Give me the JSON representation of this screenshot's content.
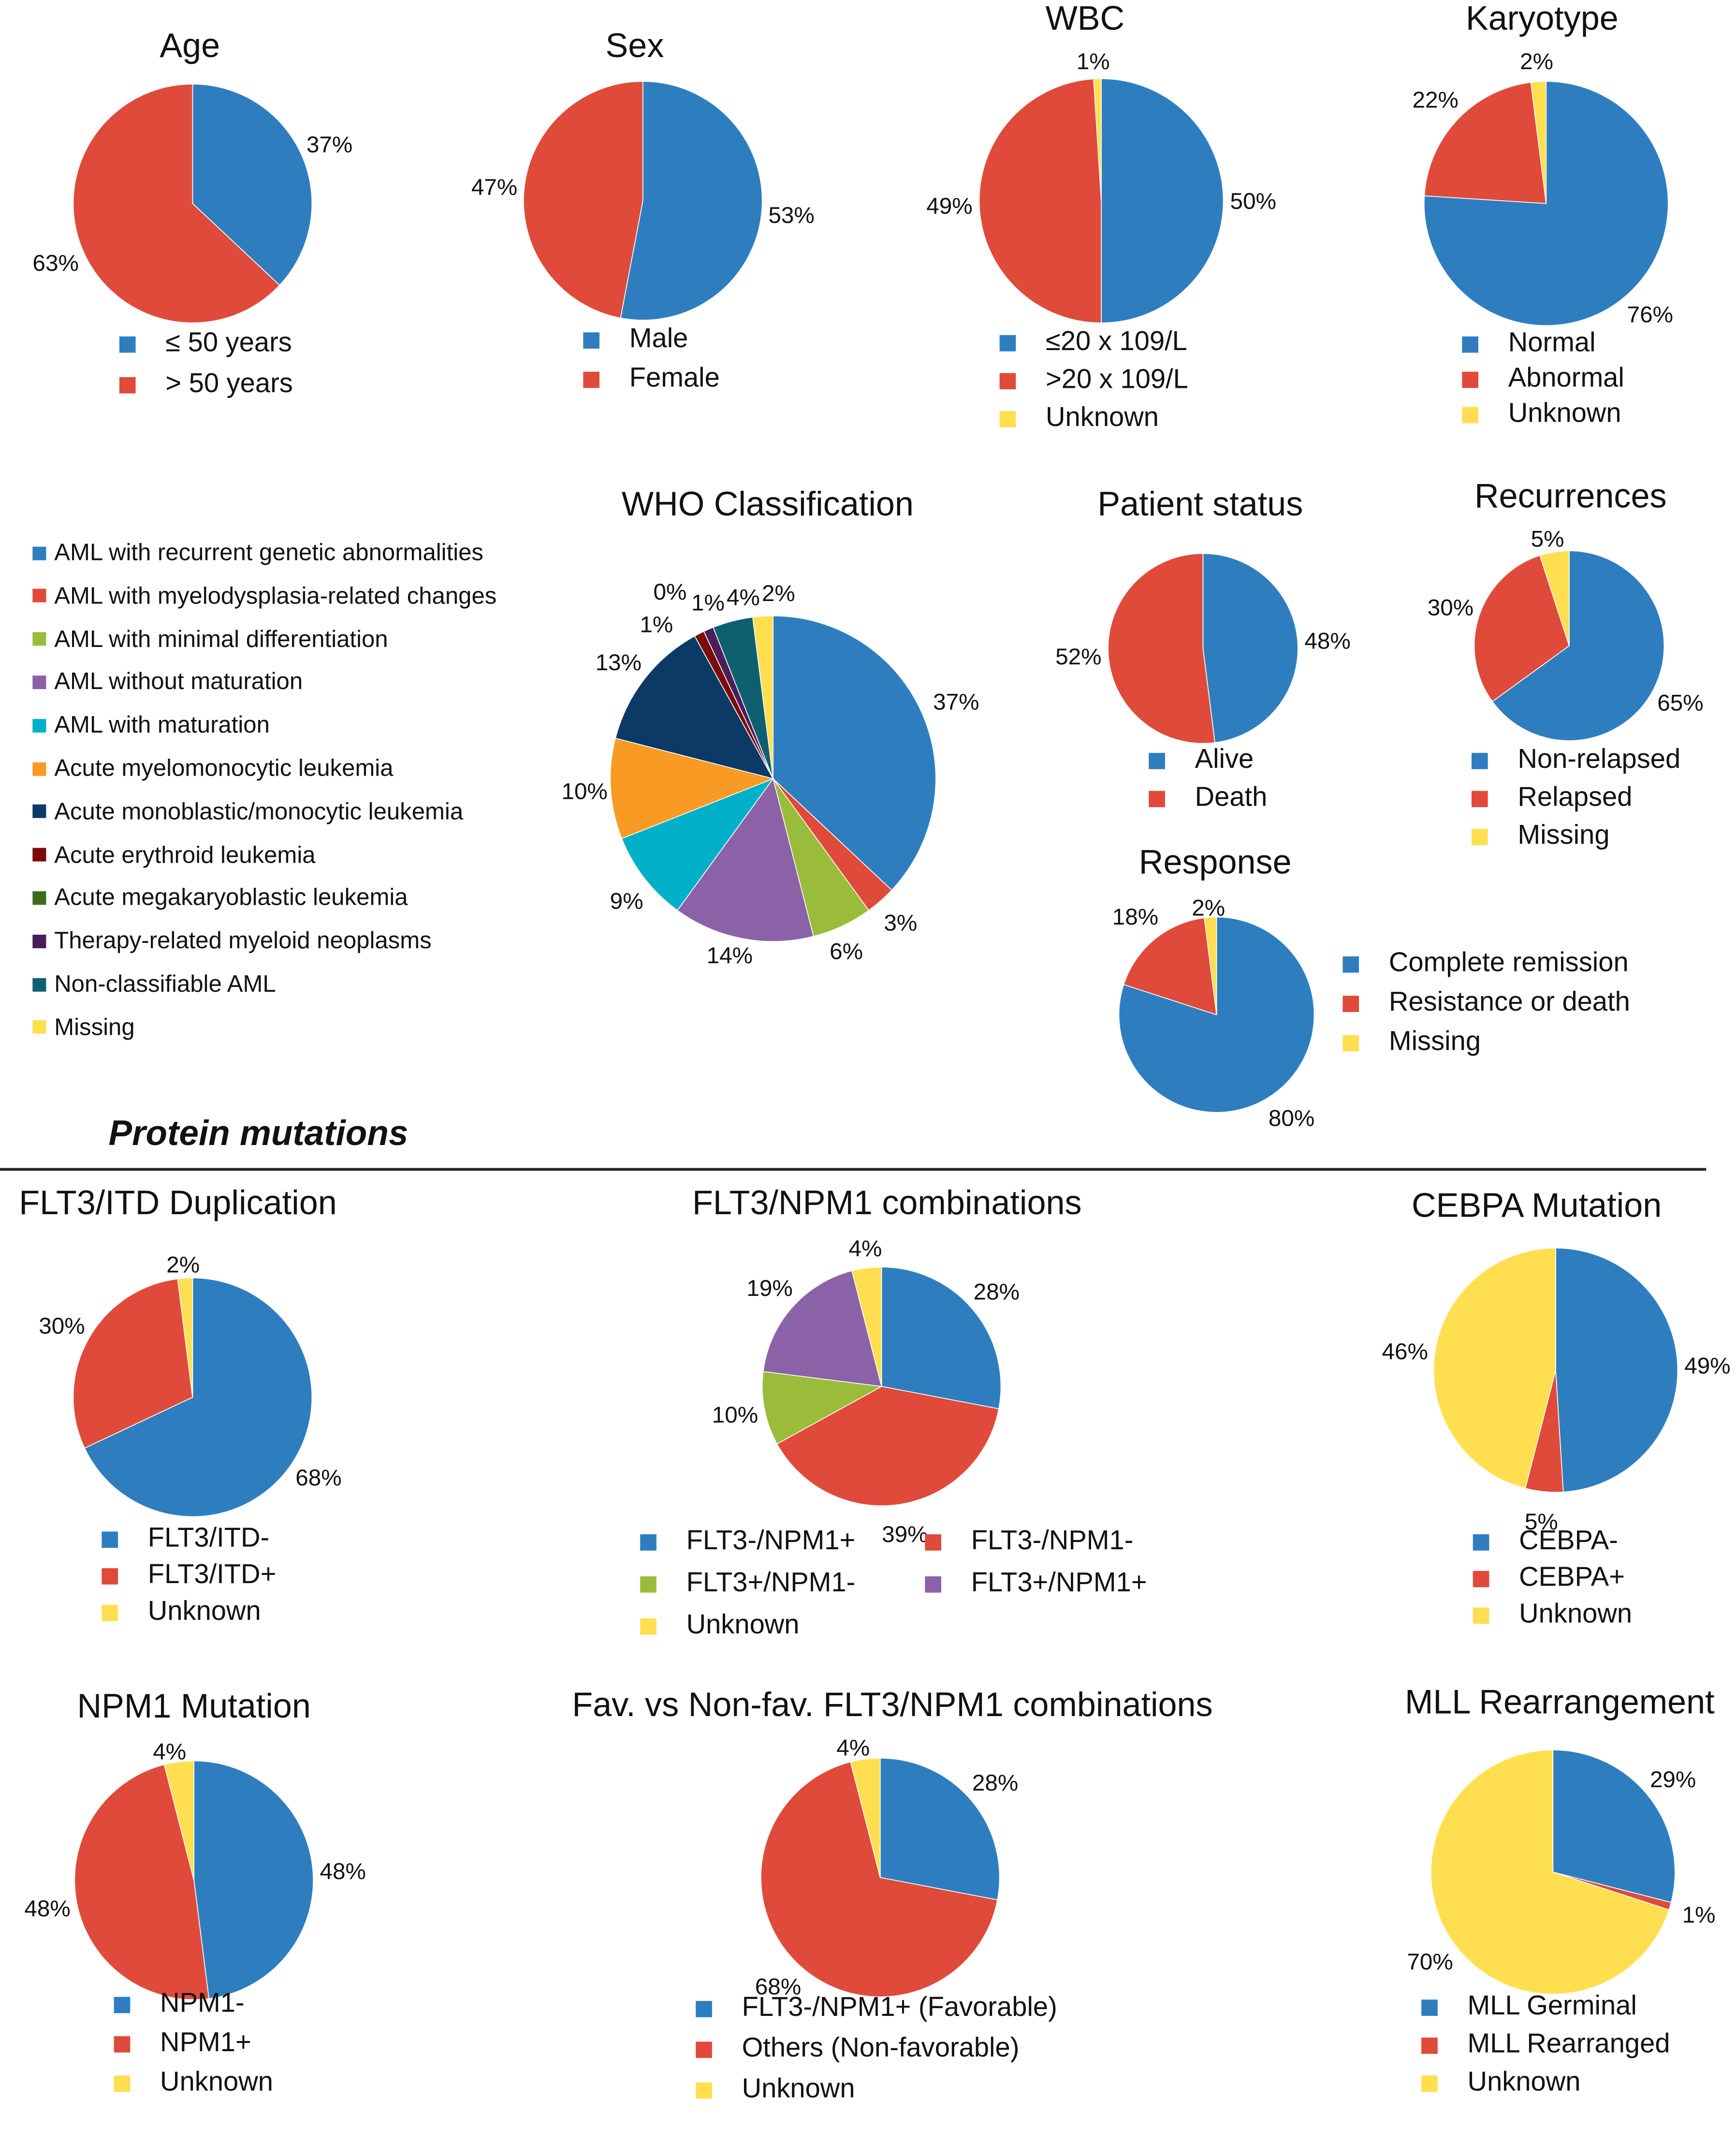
{
  "colors": {
    "blue": "#2E7EBF",
    "red": "#DF4A3A",
    "yellow": "#FFDF4F",
    "green": "#9BBB3A",
    "purple": "#8B62A8",
    "cyan": "#00AFC8",
    "orange": "#F89A23",
    "navy": "#0B3A66",
    "darkred": "#7B0A0A",
    "darkgreen": "#3E6B1A",
    "darkpurple": "#4A1E5A",
    "teal": "#0E6070"
  },
  "section_title": "Protein mutations",
  "chart_data": [
    {
      "type": "pie",
      "title": "Age",
      "values": [
        37,
        63
      ],
      "value_labels": [
        "37%",
        "63%"
      ],
      "legend": [
        "≤ 50 years",
        "> 50 years"
      ],
      "colors": [
        "blue",
        "red"
      ]
    },
    {
      "type": "pie",
      "title": "Sex",
      "values": [
        53,
        47
      ],
      "value_labels": [
        "53%",
        "47%"
      ],
      "legend": [
        "Male",
        "Female"
      ],
      "colors": [
        "blue",
        "red"
      ]
    },
    {
      "type": "pie",
      "title": "WBC",
      "values": [
        50,
        49,
        1
      ],
      "value_labels": [
        "50%",
        "49%",
        "1%"
      ],
      "legend": [
        "≤20 x 109/L",
        ">20 x 109/L",
        "Unknown"
      ],
      "colors": [
        "blue",
        "red",
        "yellow"
      ]
    },
    {
      "type": "pie",
      "title": "Karyotype",
      "values": [
        76,
        22,
        2
      ],
      "value_labels": [
        "76%",
        "22%",
        "2%"
      ],
      "legend": [
        "Normal",
        "Abnormal",
        "Unknown"
      ],
      "colors": [
        "blue",
        "red",
        "yellow"
      ]
    },
    {
      "type": "pie",
      "title": "WHO Classification",
      "values": [
        37,
        3,
        6,
        14,
        9,
        10,
        13,
        1,
        0,
        1,
        4,
        2
      ],
      "value_labels": [
        "37%",
        "3%",
        "6%",
        "14%",
        "9%",
        "10%",
        "13%",
        "1%",
        "0%",
        "1%",
        "4%",
        "2%"
      ],
      "legend": [
        "AML with recurrent genetic abnormalities",
        "AML with myelodysplasia-related changes",
        "AML with minimal differentiation",
        "AML without maturation",
        "AML with maturation",
        "Acute myelomonocytic leukemia",
        "Acute monoblastic/monocytic leukemia",
        "Acute erythroid leukemia",
        "Acute megakaryoblastic leukemia",
        "Therapy-related myeloid neoplasms",
        "Non-classifiable AML",
        "Missing"
      ],
      "colors": [
        "blue",
        "red",
        "green",
        "purple",
        "cyan",
        "orange",
        "navy",
        "darkred",
        "darkgreen",
        "darkpurple",
        "teal",
        "yellow"
      ]
    },
    {
      "type": "pie",
      "title": "Patient status",
      "values": [
        48,
        52
      ],
      "value_labels": [
        "48%",
        "52%"
      ],
      "legend": [
        "Alive",
        "Death"
      ],
      "colors": [
        "blue",
        "red"
      ]
    },
    {
      "type": "pie",
      "title": "Recurrences",
      "values": [
        65,
        30,
        5
      ],
      "value_labels": [
        "65%",
        "30%",
        "5%"
      ],
      "legend": [
        "Non-relapsed",
        "Relapsed",
        "Missing"
      ],
      "colors": [
        "blue",
        "red",
        "yellow"
      ]
    },
    {
      "type": "pie",
      "title": "Response",
      "values": [
        80,
        18,
        2
      ],
      "value_labels": [
        "80%",
        "18%",
        "2%"
      ],
      "legend": [
        "Complete remission",
        "Resistance or death",
        "Missing"
      ],
      "colors": [
        "blue",
        "red",
        "yellow"
      ]
    },
    {
      "type": "pie",
      "title": "FLT3/ITD Duplication",
      "values": [
        68,
        30,
        2
      ],
      "value_labels": [
        "68%",
        "30%",
        "2%"
      ],
      "legend": [
        "FLT3/ITD-",
        "FLT3/ITD+",
        "Unknown"
      ],
      "colors": [
        "blue",
        "red",
        "yellow"
      ]
    },
    {
      "type": "pie",
      "title": "FLT3/NPM1 combinations",
      "values": [
        28,
        39,
        10,
        19,
        4
      ],
      "value_labels": [
        "28%",
        "39%",
        "10%",
        "19%",
        "4%"
      ],
      "legend": [
        "FLT3-/NPM1+",
        "FLT3-/NPM1-",
        "FLT3+/NPM1-",
        "FLT3+/NPM1+",
        "Unknown"
      ],
      "colors": [
        "blue",
        "red",
        "green",
        "purple",
        "yellow"
      ]
    },
    {
      "type": "pie",
      "title": "CEBPA Mutation",
      "values": [
        49,
        5,
        46
      ],
      "value_labels": [
        "49%",
        "5%",
        "46%"
      ],
      "legend": [
        "CEBPA-",
        "CEBPA+",
        "Unknown"
      ],
      "colors": [
        "blue",
        "red",
        "yellow"
      ]
    },
    {
      "type": "pie",
      "title": "NPM1 Mutation",
      "values": [
        48,
        48,
        4
      ],
      "value_labels": [
        "48%",
        "48%",
        "4%"
      ],
      "legend": [
        "NPM1-",
        "NPM1+",
        "Unknown"
      ],
      "colors": [
        "blue",
        "red",
        "yellow"
      ]
    },
    {
      "type": "pie",
      "title": "Fav. vs Non-fav. FLT3/NPM1 combinations",
      "values": [
        28,
        68,
        4
      ],
      "value_labels": [
        "28%",
        "68%",
        "4%"
      ],
      "legend": [
        "FLT3-/NPM1+ (Favorable)",
        "Others (Non-favorable)",
        "Unknown"
      ],
      "colors": [
        "blue",
        "red",
        "yellow"
      ]
    },
    {
      "type": "pie",
      "title": "MLL Rearrangement",
      "values": [
        29,
        1,
        70
      ],
      "value_labels": [
        "29%",
        "1%",
        "70%"
      ],
      "legend": [
        "MLL Germinal",
        "MLL Rearranged",
        "Unknown"
      ],
      "colors": [
        "blue",
        "red",
        "yellow"
      ]
    }
  ]
}
